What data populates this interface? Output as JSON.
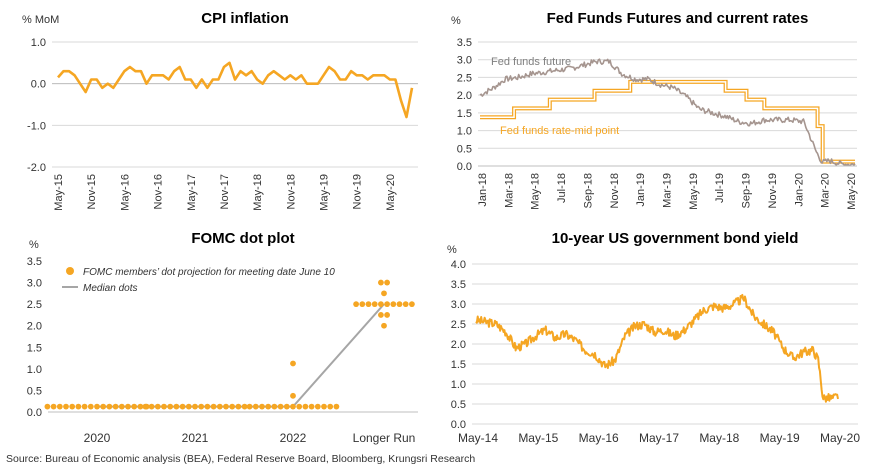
{
  "source": "Source: Bureau of Economic analysis (BEA), Federal Reserve Board, Bloomberg, Krungsri Research",
  "colors": {
    "orange": "#F5A623",
    "grey_line": "#A5958F",
    "median": "#A6A6A6",
    "grid": "#D9D9D9"
  },
  "chart_data": [
    {
      "id": "cpi",
      "type": "line",
      "title": "CPI inflation",
      "ylabel": "% MoM",
      "ylim": [
        -2.0,
        1.0
      ],
      "yticks": [
        "1.0",
        "0.0",
        "-1.0",
        "-2.0"
      ],
      "yticks_values": [
        1.0,
        0.0,
        -1.0,
        -2.0
      ],
      "xticks": [
        "May-15",
        "Nov-15",
        "May-16",
        "Nov-16",
        "May-17",
        "Nov-17",
        "May-18",
        "Nov-18",
        "May-19",
        "Nov-19",
        "May-20"
      ],
      "grid": true,
      "series": [
        {
          "values": [
            0.15,
            0.3,
            0.3,
            0.2,
            0.0,
            -0.2,
            0.1,
            0.1,
            -0.1,
            0.0,
            -0.1,
            0.1,
            0.3,
            0.4,
            0.3,
            0.3,
            0.0,
            0.2,
            0.2,
            0.2,
            0.1,
            0.3,
            0.4,
            0.1,
            0.1,
            -0.1,
            0.1,
            -0.1,
            0.1,
            0.1,
            0.4,
            0.5,
            0.1,
            0.3,
            0.2,
            0.3,
            0.1,
            0.0,
            0.2,
            0.3,
            0.2,
            0.1,
            0.2,
            0.1,
            0.2,
            0.0,
            0.0,
            0.0,
            0.2,
            0.4,
            0.3,
            0.1,
            0.1,
            0.3,
            0.2,
            0.2,
            0.1,
            0.2,
            0.2,
            0.2,
            0.1,
            0.1,
            -0.4,
            -0.8,
            -0.1
          ]
        }
      ]
    },
    {
      "id": "fed",
      "type": "line",
      "title": "Fed Funds Futures and current rates",
      "ylabel": "%",
      "ylim": [
        0.0,
        3.5
      ],
      "yticks": [
        "3.5",
        "3.0",
        "2.5",
        "2.0",
        "1.5",
        "1.0",
        "0.5",
        "0.0"
      ],
      "yticks_values": [
        3.5,
        3.0,
        2.5,
        2.0,
        1.5,
        1.0,
        0.5,
        0.0
      ],
      "xticks": [
        "Jan-18",
        "Mar-18",
        "May-18",
        "Jul-18",
        "Sep-18",
        "Nov-18",
        "Jan-19",
        "Mar-19",
        "May-19",
        "Jul-19",
        "Sep-19",
        "Nov-19",
        "Jan-20",
        "Mar-20",
        "May-20"
      ],
      "grid": true,
      "annotations": [
        "Fed funds future",
        "Fed funds rate-mid point"
      ],
      "series": [
        {
          "name": "Fed funds future",
          "x": [
            "2018-01-01",
            "2018-02-01",
            "2018-03-01",
            "2018-04-01",
            "2018-05-01",
            "2018-06-01",
            "2018-07-01",
            "2018-08-01",
            "2018-09-01",
            "2018-10-01",
            "2018-11-01",
            "2018-12-01",
            "2019-01-01",
            "2019-02-01",
            "2019-03-01",
            "2019-04-01",
            "2019-05-01",
            "2019-06-01",
            "2019-07-01",
            "2019-08-01",
            "2019-09-01",
            "2019-10-01",
            "2019-11-01",
            "2019-12-01",
            "2020-01-01",
            "2020-02-01",
            "2020-03-01",
            "2020-03-15",
            "2020-04-01",
            "2020-05-01",
            "2020-05-31"
          ],
          "values": [
            2.0,
            2.2,
            2.45,
            2.5,
            2.6,
            2.65,
            2.7,
            2.75,
            2.85,
            2.95,
            2.95,
            2.6,
            2.45,
            2.45,
            2.3,
            2.2,
            1.95,
            1.6,
            1.5,
            1.4,
            1.25,
            1.2,
            1.3,
            1.3,
            1.3,
            1.25,
            0.4,
            0.1,
            0.15,
            0.05,
            0.05
          ]
        },
        {
          "name": "Fed funds rate-mid point",
          "x": [
            "2018-01-01",
            "2018-03-22",
            "2018-03-22",
            "2018-06-14",
            "2018-06-14",
            "2018-09-27",
            "2018-09-27",
            "2018-12-20",
            "2018-12-20",
            "2019-08-01",
            "2019-08-01",
            "2019-09-19",
            "2019-09-19",
            "2019-10-31",
            "2019-10-31",
            "2020-03-04",
            "2020-03-04",
            "2020-03-16",
            "2020-03-16",
            "2020-05-31"
          ],
          "values": [
            1.375,
            1.375,
            1.625,
            1.625,
            1.875,
            1.875,
            2.125,
            2.125,
            2.375,
            2.375,
            2.125,
            2.125,
            1.875,
            1.875,
            1.625,
            1.625,
            1.125,
            1.125,
            0.125,
            0.125
          ]
        }
      ]
    },
    {
      "id": "fomc",
      "type": "scatter",
      "title": "FOMC dot plot",
      "ylabel": "%",
      "ylim": [
        0.0,
        3.5
      ],
      "yticks": [
        "3.5",
        "3.0",
        "2.5",
        "2.0",
        "1.5",
        "1.0",
        "0.5",
        "0.0"
      ],
      "yticks_values": [
        3.5,
        3.0,
        2.5,
        2.0,
        1.5,
        1.0,
        0.5,
        0.0
      ],
      "categories": [
        "2020",
        "2021",
        "2022",
        "Longer Run"
      ],
      "legend": [
        "FOMC members’ dot projection for meeting date June 10",
        "Median dots"
      ],
      "dots": [
        {
          "category": "2020",
          "values": [
            0.125,
            0.125,
            0.125,
            0.125,
            0.125,
            0.125,
            0.125,
            0.125,
            0.125,
            0.125,
            0.125,
            0.125,
            0.125,
            0.125,
            0.125,
            0.125,
            0.125
          ]
        },
        {
          "category": "2021",
          "values": [
            0.125,
            0.125,
            0.125,
            0.125,
            0.125,
            0.125,
            0.125,
            0.125,
            0.125,
            0.125,
            0.125,
            0.125,
            0.125,
            0.125,
            0.125,
            0.125,
            0.125
          ]
        },
        {
          "category": "2022",
          "values": [
            0.125,
            0.125,
            0.125,
            0.125,
            0.125,
            0.125,
            0.125,
            0.125,
            0.125,
            0.125,
            0.125,
            0.125,
            0.125,
            0.125,
            0.125,
            0.375,
            1.125
          ]
        },
        {
          "category": "Longer Run",
          "values": [
            2.0,
            2.25,
            2.25,
            2.5,
            2.5,
            2.5,
            2.5,
            2.5,
            2.5,
            2.5,
            2.5,
            2.5,
            2.5,
            2.75,
            3.0,
            3.0
          ]
        }
      ],
      "median": [
        0.125,
        0.125,
        0.125,
        2.5
      ]
    },
    {
      "id": "bond",
      "type": "line",
      "title": "10-year US government bond yield",
      "ylabel": "%",
      "ylim": [
        0.0,
        4.0
      ],
      "yticks": [
        "4.0",
        "3.5",
        "3.0",
        "2.5",
        "2.0",
        "1.5",
        "1.0",
        "0.5",
        "0.0"
      ],
      "yticks_values": [
        4.0,
        3.5,
        3.0,
        2.5,
        2.0,
        1.5,
        1.0,
        0.5,
        0.0
      ],
      "xticks": [
        "May-14",
        "May-15",
        "May-16",
        "May-17",
        "May-18",
        "May-19",
        "May-20"
      ],
      "grid": true,
      "series": [
        {
          "x": [
            "2014-05",
            "2014-07",
            "2014-09",
            "2014-11",
            "2015-01",
            "2015-03",
            "2015-05",
            "2015-07",
            "2015-09",
            "2015-11",
            "2016-01",
            "2016-03",
            "2016-05",
            "2016-07",
            "2016-09",
            "2016-11",
            "2017-01",
            "2017-03",
            "2017-05",
            "2017-07",
            "2017-09",
            "2017-11",
            "2018-01",
            "2018-03",
            "2018-05",
            "2018-07",
            "2018-09",
            "2018-11",
            "2019-01",
            "2019-03",
            "2019-05",
            "2019-07",
            "2019-09",
            "2019-11",
            "2020-01",
            "2020-02",
            "2020-03",
            "2020-04",
            "2020-05",
            "2020-06"
          ],
          "values": [
            2.6,
            2.55,
            2.5,
            2.3,
            1.9,
            2.0,
            2.2,
            2.35,
            2.15,
            2.25,
            2.1,
            1.85,
            1.75,
            1.45,
            1.6,
            2.2,
            2.45,
            2.5,
            2.3,
            2.35,
            2.2,
            2.35,
            2.6,
            2.85,
            2.95,
            2.9,
            3.0,
            3.15,
            2.7,
            2.5,
            2.3,
            1.9,
            1.65,
            1.8,
            1.85,
            1.6,
            0.65,
            0.65,
            0.65,
            0.7
          ]
        }
      ]
    }
  ]
}
